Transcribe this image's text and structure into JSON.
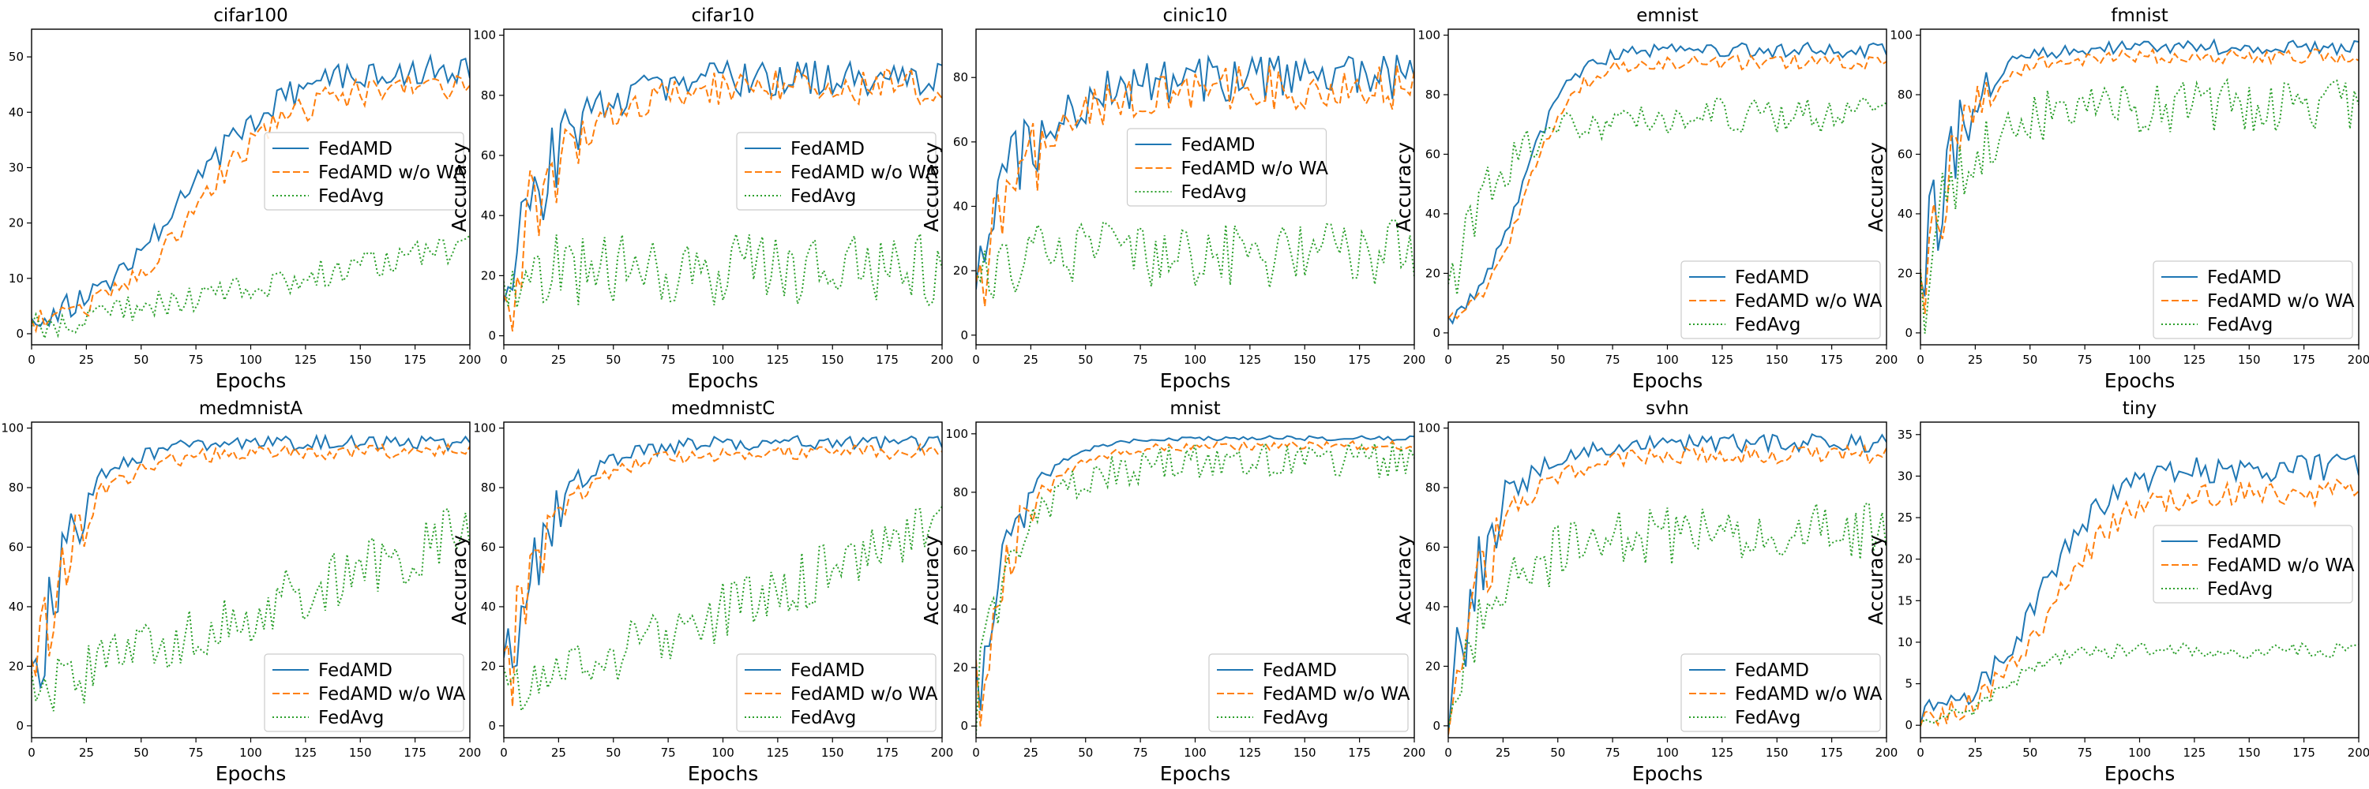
{
  "figure": {
    "series_styles": [
      {
        "name": "FedAMD",
        "color": "#1f77b4",
        "dash": ""
      },
      {
        "name": "FedAMD w/o WA",
        "color": "#ff7f0e",
        "dash": "9,4"
      },
      {
        "name": "FedAvg",
        "color": "#2ca02c",
        "dash": "2,3"
      }
    ]
  },
  "chart_data": [
    {
      "type": "line",
      "title": "cifar100",
      "xlabel": "Epochs",
      "ylabel": "Accuracy",
      "xlim": [
        0,
        200
      ],
      "ylim": [
        -2,
        55
      ],
      "xticks": [
        0,
        25,
        50,
        75,
        100,
        125,
        150,
        175,
        200
      ],
      "yticks": [
        0,
        10,
        20,
        30,
        40,
        50
      ],
      "legend_loc": "center-right",
      "series": [
        {
          "name": "FedAMD",
          "final": 48,
          "shape": "sigmoid",
          "t0": 70,
          "k": 0.045,
          "amp": 4,
          "start": 1,
          "noise": 2.5
        },
        {
          "name": "FedAMD w/o WA",
          "final": 45,
          "shape": "sigmoid",
          "t0": 75,
          "k": 0.045,
          "amp": 4,
          "start": 1,
          "noise": 2.5
        },
        {
          "name": "FedAvg",
          "final": 16,
          "shape": "linear",
          "start": 1,
          "noise": 2.5
        }
      ]
    },
    {
      "type": "line",
      "title": "cifar10",
      "xlabel": "Epochs",
      "ylabel": "Accuracy",
      "xlim": [
        0,
        200
      ],
      "ylim": [
        -3,
        102
      ],
      "xticks": [
        0,
        25,
        50,
        75,
        100,
        125,
        150,
        175,
        200
      ],
      "yticks": [
        0,
        20,
        40,
        60,
        80,
        100
      ],
      "legend_loc": "center-right",
      "series": [
        {
          "name": "FedAMD",
          "final": 86,
          "shape": "exp",
          "tau": 22,
          "start": 10,
          "noise": 6,
          "early_noise": 22
        },
        {
          "name": "FedAMD w/o WA",
          "final": 83,
          "shape": "exp",
          "tau": 24,
          "start": 10,
          "noise": 6,
          "early_noise": 22
        },
        {
          "name": "FedAvg",
          "final": 22,
          "shape": "flat",
          "start": 15,
          "noise": 12
        }
      ]
    },
    {
      "type": "line",
      "title": "cinic10",
      "xlabel": "Epochs",
      "ylabel": "Accuracy",
      "xlim": [
        0,
        200
      ],
      "ylim": [
        -3,
        95
      ],
      "xticks": [
        0,
        25,
        50,
        75,
        100,
        125,
        150,
        175,
        200
      ],
      "yticks": [
        0,
        20,
        40,
        60,
        80
      ],
      "legend_loc": "center-center",
      "series": [
        {
          "name": "FedAMD",
          "final": 80,
          "shape": "exp",
          "tau": 22,
          "start": 10,
          "noise": 7,
          "early_noise": 22
        },
        {
          "name": "FedAMD w/o WA",
          "final": 77,
          "shape": "exp",
          "tau": 24,
          "start": 10,
          "noise": 7,
          "early_noise": 22
        },
        {
          "name": "FedAvg",
          "final": 25,
          "shape": "flat",
          "start": 15,
          "noise": 11
        }
      ]
    },
    {
      "type": "line",
      "title": "emnist",
      "xlabel": "Epochs",
      "ylabel": "Accuracy",
      "xlim": [
        0,
        200
      ],
      "ylim": [
        -4,
        102
      ],
      "xticks": [
        0,
        25,
        50,
        75,
        100,
        125,
        150,
        175,
        200
      ],
      "yticks": [
        0,
        20,
        40,
        60,
        80,
        100
      ],
      "legend_loc": "lower-right",
      "series": [
        {
          "name": "FedAMD",
          "final": 95,
          "shape": "sigmoid",
          "t0": 33,
          "k": 0.09,
          "amp": 3,
          "start": 0,
          "noise": 2.5
        },
        {
          "name": "FedAMD w/o WA",
          "final": 91,
          "shape": "sigmoid",
          "t0": 35,
          "k": 0.09,
          "amp": 3,
          "start": 0,
          "noise": 2.5
        },
        {
          "name": "FedAvg",
          "final": 73,
          "shape": "exp",
          "tau": 20,
          "start": 10,
          "noise": 6,
          "early_noise": 12
        }
      ]
    },
    {
      "type": "line",
      "title": "fmnist",
      "xlabel": "Epochs",
      "ylabel": "Accuracy",
      "xlim": [
        0,
        200
      ],
      "ylim": [
        -4,
        102
      ],
      "xticks": [
        0,
        25,
        50,
        75,
        100,
        125,
        150,
        175,
        200
      ],
      "yticks": [
        0,
        20,
        40,
        60,
        80,
        100
      ],
      "legend_loc": "lower-right",
      "series": [
        {
          "name": "FedAMD",
          "final": 96,
          "shape": "exp",
          "tau": 15,
          "start": 8,
          "noise": 2.5,
          "early_noise": 22
        },
        {
          "name": "FedAMD w/o WA",
          "final": 93,
          "shape": "exp",
          "tau": 16,
          "start": 8,
          "noise": 2.5,
          "early_noise": 22
        },
        {
          "name": "FedAvg",
          "final": 76,
          "shape": "exp",
          "tau": 18,
          "start": 8,
          "noise": 9,
          "early_noise": 20
        }
      ]
    },
    {
      "type": "line",
      "title": "medmnistA",
      "xlabel": "Epochs",
      "ylabel": "Accuracy",
      "xlim": [
        0,
        200
      ],
      "ylim": [
        -4,
        102
      ],
      "xticks": [
        0,
        25,
        50,
        75,
        100,
        125,
        150,
        175,
        200
      ],
      "yticks": [
        0,
        20,
        40,
        60,
        80,
        100
      ],
      "legend_loc": "lower-right",
      "series": [
        {
          "name": "FedAMD",
          "final": 95,
          "shape": "exp",
          "tau": 17,
          "start": 8,
          "noise": 2.5,
          "early_noise": 20
        },
        {
          "name": "FedAMD w/o WA",
          "final": 92,
          "shape": "exp",
          "tau": 19,
          "start": 8,
          "noise": 2.5,
          "early_noise": 20
        },
        {
          "name": "FedAvg",
          "final": 66,
          "shape": "linear",
          "start": 10,
          "noise": 10
        }
      ]
    },
    {
      "type": "line",
      "title": "medmnistC",
      "xlabel": "Epochs",
      "ylabel": "Accuracy",
      "xlim": [
        0,
        200
      ],
      "ylim": [
        -4,
        102
      ],
      "xticks": [
        0,
        25,
        50,
        75,
        100,
        125,
        150,
        175,
        200
      ],
      "yticks": [
        0,
        20,
        40,
        60,
        80,
        100
      ],
      "legend_loc": "lower-right",
      "series": [
        {
          "name": "FedAMD",
          "final": 95,
          "shape": "exp",
          "tau": 18,
          "start": 8,
          "noise": 2.5,
          "early_noise": 20
        },
        {
          "name": "FedAMD w/o WA",
          "final": 92,
          "shape": "exp",
          "tau": 20,
          "start": 8,
          "noise": 2.5,
          "early_noise": 20
        },
        {
          "name": "FedAvg",
          "final": 66,
          "shape": "linear",
          "start": 10,
          "noise": 10
        }
      ]
    },
    {
      "type": "line",
      "title": "mnist",
      "xlabel": "Epochs",
      "ylabel": "Accuracy",
      "xlim": [
        0,
        200
      ],
      "ylim": [
        -4,
        104
      ],
      "xticks": [
        0,
        25,
        50,
        75,
        100,
        125,
        150,
        175,
        200
      ],
      "yticks": [
        0,
        20,
        40,
        60,
        80,
        100
      ],
      "legend_loc": "lower-right",
      "series": [
        {
          "name": "FedAMD",
          "final": 98.5,
          "shape": "exp",
          "tau": 16,
          "start": 5,
          "noise": 0.8,
          "early_noise": 18
        },
        {
          "name": "FedAMD w/o WA",
          "final": 96,
          "shape": "exp",
          "tau": 18,
          "start": 5,
          "noise": 1.5,
          "early_noise": 18
        },
        {
          "name": "FedAvg",
          "final": 91,
          "shape": "exp",
          "tau": 20,
          "start": 5,
          "noise": 6,
          "early_noise": 15
        }
      ]
    },
    {
      "type": "line",
      "title": "svhn",
      "xlabel": "Epochs",
      "ylabel": "Accuracy",
      "xlim": [
        0,
        200
      ],
      "ylim": [
        -4,
        102
      ],
      "xticks": [
        0,
        25,
        50,
        75,
        100,
        125,
        150,
        175,
        200
      ],
      "yticks": [
        0,
        20,
        40,
        60,
        80,
        100
      ],
      "legend_loc": "lower-right",
      "series": [
        {
          "name": "FedAMD",
          "final": 95,
          "shape": "exp",
          "tau": 18,
          "start": 5,
          "noise": 3,
          "early_noise": 22
        },
        {
          "name": "FedAMD w/o WA",
          "final": 91,
          "shape": "exp",
          "tau": 20,
          "start": 5,
          "noise": 3,
          "early_noise": 22
        },
        {
          "name": "FedAvg",
          "final": 65,
          "shape": "exp",
          "tau": 25,
          "start": 10,
          "noise": 10,
          "early_noise": 14
        }
      ]
    },
    {
      "type": "line",
      "title": "tiny",
      "xlabel": "Epochs",
      "ylabel": "Accuracy",
      "xlim": [
        0,
        200
      ],
      "ylim": [
        -1.5,
        36.5
      ],
      "xticks": [
        0,
        25,
        50,
        75,
        100,
        125,
        150,
        175,
        200
      ],
      "yticks": [
        0,
        5,
        10,
        15,
        20,
        25,
        30,
        35
      ],
      "legend_loc": "center-right",
      "series": [
        {
          "name": "FedAMD",
          "final": 31,
          "shape": "sigmoid",
          "t0": 55,
          "k": 0.065,
          "amp": 2,
          "start": 0.5,
          "noise": 1.6
        },
        {
          "name": "FedAMD w/o WA",
          "final": 28,
          "shape": "sigmoid",
          "t0": 60,
          "k": 0.065,
          "amp": 2,
          "start": 0.5,
          "noise": 1.6
        },
        {
          "name": "FedAvg",
          "final": 9,
          "shape": "sigmoid",
          "t0": 40,
          "k": 0.1,
          "amp": 1,
          "start": 0.5,
          "noise": 0.9
        }
      ]
    }
  ]
}
